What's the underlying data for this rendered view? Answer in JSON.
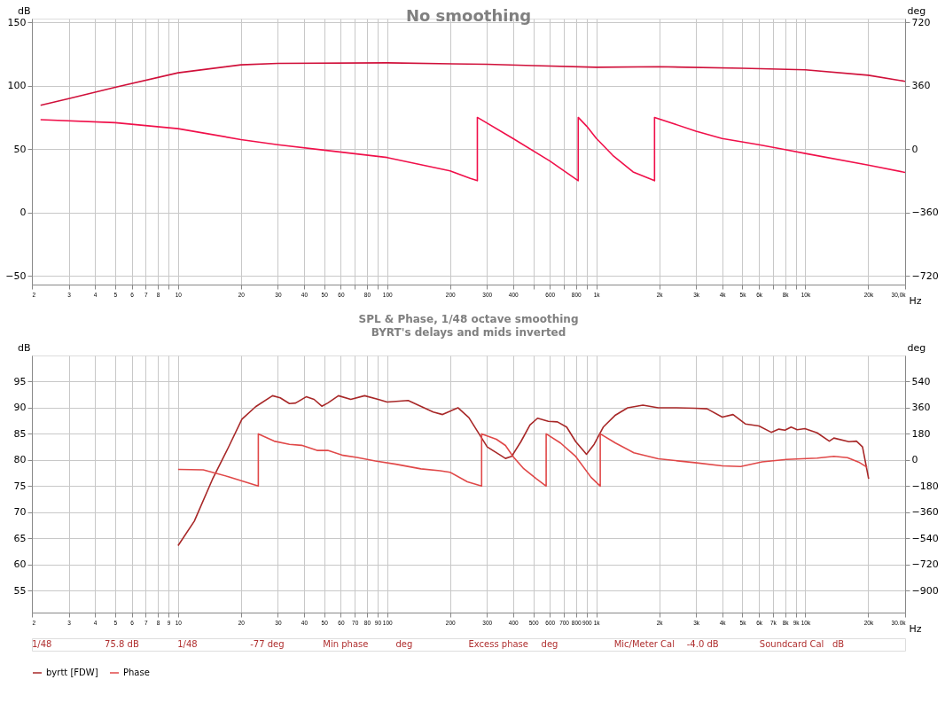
{
  "chart_data": [
    {
      "type": "line",
      "title": "No smoothing",
      "xlabel": "Hz",
      "ylabel": "dB",
      "y2label": "deg",
      "log": "x",
      "grid": true,
      "xlim": [
        2,
        30000
      ],
      "xticks": [
        2,
        3,
        4,
        5,
        6,
        7,
        8,
        {
          "value": 9,
          "label": null
        },
        10,
        20,
        30,
        40,
        50,
        60,
        {
          "value": 70,
          "label": null
        },
        80,
        {
          "value": 90,
          "label": null
        },
        100,
        200,
        300,
        400,
        {
          "value": 500,
          "label": null
        },
        600,
        {
          "value": 700,
          "label": null
        },
        800,
        {
          "value": 900,
          "label": null
        },
        {
          "value": 1000,
          "label": "1k"
        },
        {
          "value": 2000,
          "label": "2k"
        },
        {
          "value": 3000,
          "label": "3k"
        },
        {
          "value": 4000,
          "label": "4k"
        },
        {
          "value": 5000,
          "label": "5k"
        },
        {
          "value": 6000,
          "label": "6k"
        },
        {
          "value": 7000,
          "label": null
        },
        {
          "value": 8000,
          "label": "8k"
        },
        {
          "value": 9000,
          "label": null
        },
        {
          "value": 10000,
          "label": "10k"
        },
        {
          "value": 20000,
          "label": "20k"
        },
        {
          "value": 30000,
          "label": "30,0k"
        }
      ],
      "ylim": [
        -57,
        153
      ],
      "yticks": [
        -50,
        0,
        50,
        100,
        150
      ],
      "y2lim": [
        -770.4,
        741.6
      ],
      "y2ticks": [
        -720,
        -360,
        0,
        360,
        720
      ],
      "series": [
        {
          "color": "#d0103a",
          "x": [
            2.2,
            3,
            5,
            10,
            20,
            30,
            100,
            300,
            500,
            1000,
            2000,
            5000,
            10000,
            20000,
            30000
          ],
          "values": [
            84.6,
            89.8,
            98.8,
            110.2,
            116.5,
            117.7,
            118.1,
            116.9,
            115.9,
            114.6,
            115,
            113.8,
            112.6,
            108.3,
            103.5
          ]
        },
        {
          "color": "#f0104a",
          "axis": "y2",
          "x": [
            2.2,
            5,
            10,
            20,
            30,
            50,
            100,
            200,
            250,
            270,
            270,
            400,
            600,
            820,
            820,
            900,
            1000,
            1200,
            1500,
            1900,
            1900,
            3000,
            4000,
            6000,
            8000,
            10000,
            20000,
            30000
          ],
          "values": [
            167,
            150,
            116,
            54,
            25,
            -6,
            -48,
            -124,
            -167,
            -180,
            180,
            60,
            -68,
            -180,
            180,
            130,
            61,
            -36,
            -130,
            -180,
            180,
            102,
            60,
            25,
            -3,
            -25,
            -91,
            -133
          ]
        }
      ]
    },
    {
      "type": "line",
      "title": "SPL & Phase, 1/48 octave smoothing",
      "subtitle": "BYRT's delays and mids inverted",
      "xlabel": "Hz",
      "ylabel": "dB",
      "y2label": "deg",
      "log": "x",
      "grid": true,
      "legend": "bottom",
      "xlim": [
        2,
        30000
      ],
      "xticks": [
        2,
        3,
        4,
        5,
        6,
        7,
        8,
        9,
        10,
        20,
        30,
        40,
        50,
        60,
        70,
        80,
        90,
        100,
        200,
        300,
        400,
        500,
        600,
        700,
        800,
        900,
        {
          "value": 1000,
          "label": "1k"
        },
        {
          "value": 2000,
          "label": "2k"
        },
        {
          "value": 3000,
          "label": "3k"
        },
        {
          "value": 4000,
          "label": "4k"
        },
        {
          "value": 5000,
          "label": "5k"
        },
        {
          "value": 6000,
          "label": "6k"
        },
        {
          "value": 7000,
          "label": "7k"
        },
        {
          "value": 8000,
          "label": "8k"
        },
        {
          "value": 9000,
          "label": "9k"
        },
        {
          "value": 10000,
          "label": "10k"
        },
        {
          "value": 20000,
          "label": "20k"
        },
        {
          "value": 30000,
          "label": "30.0k"
        }
      ],
      "ylim": [
        50.8,
        100
      ],
      "yticks": [
        55,
        60,
        65,
        70,
        75,
        80,
        85,
        90,
        95
      ],
      "y2lim": [
        -1051.2,
        720
      ],
      "y2ticks": [
        -900,
        -720,
        -540,
        -360,
        -180,
        0,
        180,
        360,
        540
      ],
      "series": [
        {
          "name": "byrtt [FDW]",
          "color": "#a82828",
          "x": [
            10,
            11.96,
            14.6,
            17.4,
            20.2,
            23.5,
            28.3,
            30.8,
            34.1,
            36.5,
            41,
            44.7,
            48.7,
            52,
            58.5,
            67,
            78,
            90.6,
            100,
            126,
            166,
            184,
            218,
            246,
            281,
            301,
            333,
            368,
            394,
            436,
            482,
            524,
            590,
            652,
            722,
            798,
            898,
            977,
            1080,
            1236,
            1414,
            1672,
            1979,
            2421,
            2962,
            3387,
            4007,
            4510,
            5163,
            6002,
            6868,
            7468,
            7990,
            8548,
            9145,
            9950,
            11390,
            13020,
            13690,
            16160,
            17560,
            18770,
            20080
          ],
          "values": [
            63.6,
            68.3,
            76.3,
            82.4,
            87.8,
            90.2,
            92.3,
            91.9,
            90.8,
            90.9,
            92.1,
            91.6,
            90.3,
            90.9,
            92.3,
            91.6,
            92.3,
            91.6,
            91.1,
            91.4,
            89.2,
            88.7,
            90.0,
            88.1,
            84.4,
            82.5,
            81.4,
            80.3,
            80.7,
            83.5,
            86.7,
            88.0,
            87.4,
            87.3,
            86.3,
            83.5,
            81.1,
            83.0,
            86.3,
            88.6,
            90.0,
            90.5,
            90.0,
            90.0,
            89.9,
            89.8,
            88.2,
            88.7,
            86.9,
            86.5,
            85.3,
            85.9,
            85.7,
            86.3,
            85.8,
            86.0,
            85.2,
            83.6,
            84.2,
            83.5,
            83.6,
            82.5,
            76.4
          ]
        },
        {
          "name": "Phase",
          "color": "#e04848",
          "axis": "y2",
          "x": [
            10,
            13.2,
            17.4,
            24.2,
            24.2,
            28.8,
            34.1,
            39,
            46.2,
            52,
            61.6,
            71.7,
            87.8,
            110,
            145,
            179,
            200,
            242,
            283,
            283,
            333,
            368,
            400,
            450,
            516,
            576,
            576,
            675,
            798,
            944,
            1045,
            1045,
            1236,
            1513,
            1979,
            2962,
            4007,
            4907,
            6213,
            8131,
            11390,
            13690,
            15900,
            18180,
            19750
          ],
          "values": [
            -65,
            -68,
            -115,
            -180,
            180,
            130,
            108,
            101,
            66,
            66,
            32,
            18,
            -7,
            -29,
            -61,
            -74,
            -85,
            -150,
            -180,
            180,
            143,
            100,
            24,
            -60,
            -128,
            -180,
            180,
            117,
            24,
            -119,
            -180,
            180,
            117,
            50,
            8,
            -18,
            -40,
            -45,
            -13,
            4,
            13,
            25,
            16,
            -18,
            -50
          ]
        }
      ],
      "annotations": [
        "1/48",
        "75.8 dB",
        "1/48",
        "-77 deg",
        "Min phase",
        "deg",
        "Excess phase",
        "deg",
        "Mic/Meter Cal",
        "-4.0 dB",
        "Soundcard Cal",
        "dB"
      ]
    }
  ]
}
